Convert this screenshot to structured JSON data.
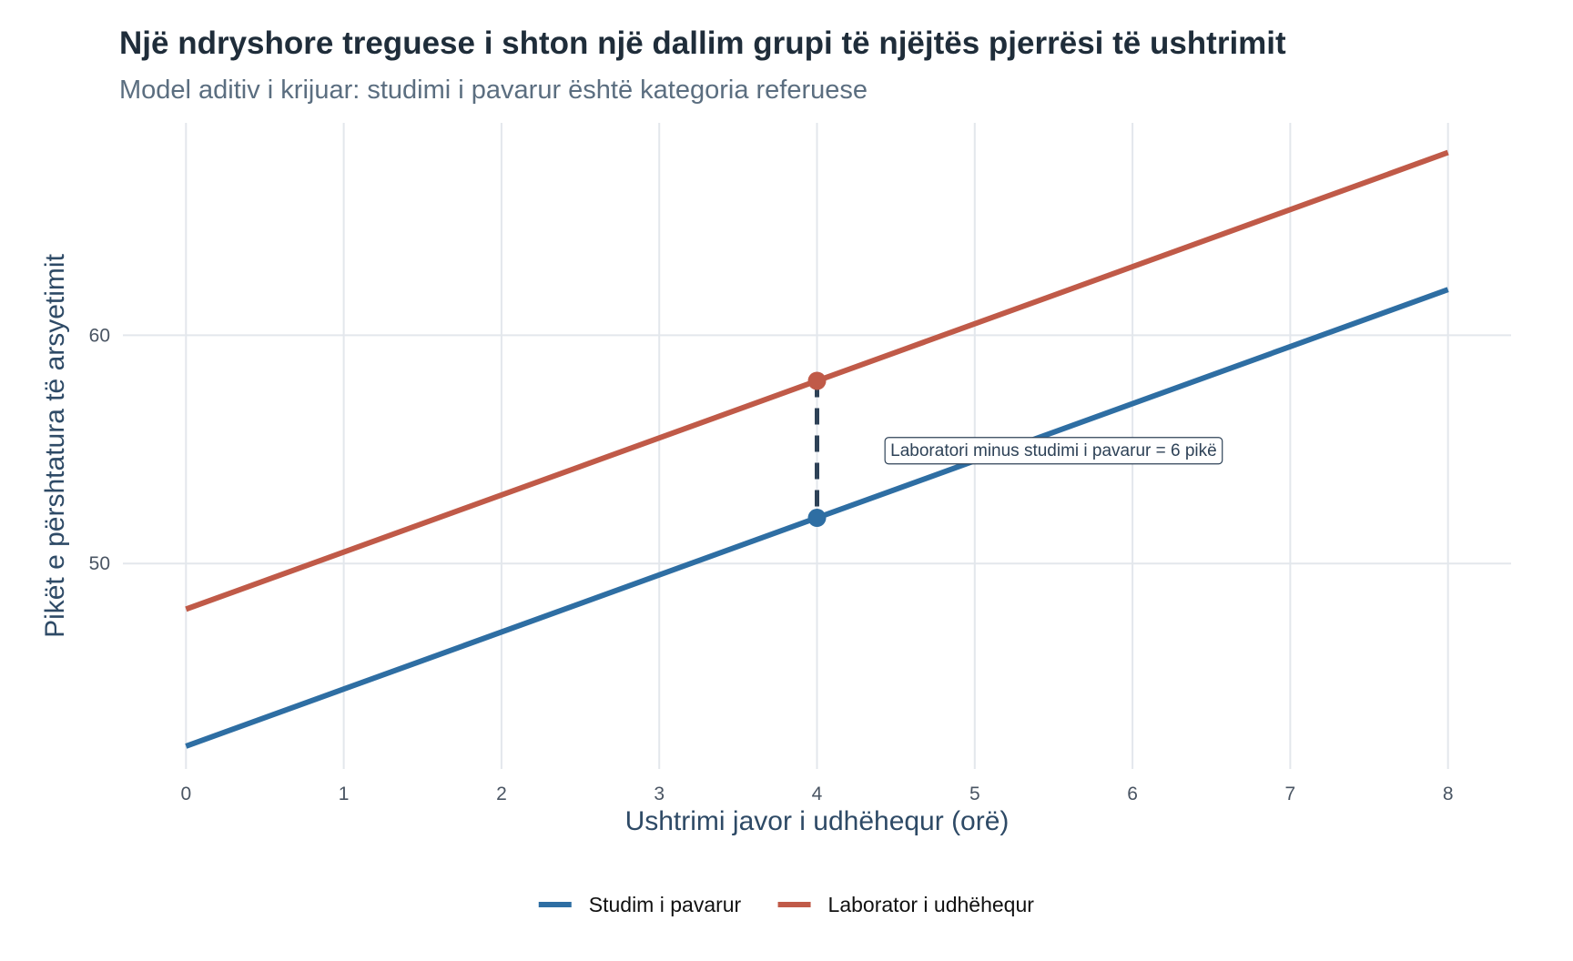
{
  "chart_data": {
    "type": "line",
    "title": "Një ndryshore treguese i shton një dallim grupi të njëjtës pjerrësi të ushtrimit",
    "subtitle": "Model aditiv i krijuar: studimi i pavarur është kategoria referuese",
    "xlabel": "Ushtrimi javor i udhëhequr (orë)",
    "ylabel": "Pikët e përshtatura të arsyetimit",
    "xlim": [
      -0.4,
      8.4
    ],
    "ylim": [
      41,
      69.3
    ],
    "xticks": [
      0,
      1,
      2,
      3,
      4,
      5,
      6,
      7,
      8
    ],
    "yticks": [
      50,
      60
    ],
    "grid": true,
    "legend_position": "bottom",
    "series": [
      {
        "name": "Studim i pavarur",
        "color": "#2e6ea3",
        "x": [
          0,
          8
        ],
        "y": [
          42,
          62
        ]
      },
      {
        "name": "Laborator i udhëhequr",
        "color": "#c05a48",
        "x": [
          0,
          8
        ],
        "y": [
          48,
          68
        ]
      }
    ],
    "highlight": {
      "x": 4,
      "y_low": 52,
      "y_high": 58,
      "line_color": "#2e4257",
      "annotation": "Laboratori minus studimi i pavarur = 6 pikë",
      "annotation_x": 5.5,
      "annotation_y": 55
    }
  }
}
